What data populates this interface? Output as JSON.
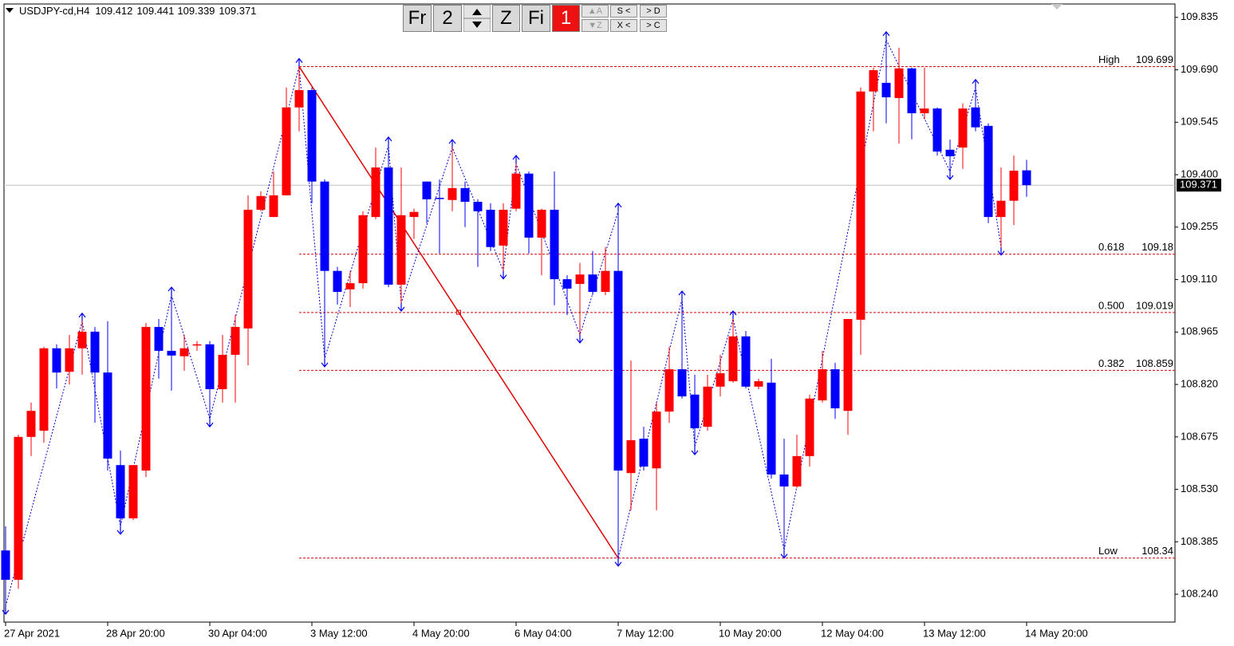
{
  "chart_data": {
    "type": "candlestick",
    "symbol": "USDJPY-cd,H4",
    "categories": [
      "27 Apr 2021",
      null,
      null,
      null,
      null,
      null,
      null,
      null,
      "28 Apr 20:00",
      null,
      null,
      null,
      null,
      null,
      null,
      null,
      "30 Apr 04:00",
      null,
      null,
      null,
      null,
      null,
      null,
      null,
      "3 May 12:00",
      null,
      null,
      null,
      null,
      null,
      null,
      null,
      "4 May 20:00",
      null,
      null,
      null,
      null,
      null,
      null,
      null,
      "6 May 04:00",
      null,
      null,
      null,
      null,
      null,
      null,
      null,
      "7 May 12:00",
      null,
      null,
      null,
      null,
      null,
      null,
      null,
      "10 May 20:00",
      null,
      null,
      null,
      null,
      null,
      null,
      null,
      "12 May 04:00",
      null,
      null,
      null,
      null,
      null,
      null,
      null,
      "13 May 12:00",
      null,
      null,
      null,
      null,
      null,
      null,
      null,
      "14 May 20:00"
    ],
    "open": [
      108.361,
      108.28,
      108.675,
      108.692,
      108.92,
      108.855,
      108.92,
      108.966,
      108.853,
      108.597,
      108.45,
      108.582,
      108.979,
      108.913,
      108.898,
      108.929,
      108.931,
      108.807,
      108.902,
      108.975,
      109.303,
      109.283,
      109.343,
      109.586,
      109.634,
      109.381,
      109.134,
      109.083,
      109.1,
      109.283,
      109.42,
      109.096,
      109.283,
      109.381,
      109.336,
      109.33,
      109.363,
      109.325,
      109.303,
      109.204,
      109.306,
      109.403,
      109.226,
      109.303,
      109.111,
      109.098,
      109.124,
      109.076,
      109.134,
      108.575,
      108.67,
      108.588,
      108.745,
      108.862,
      108.792,
      108.703,
      108.814,
      108.829,
      108.953,
      108.814,
      108.825,
      108.571,
      108.538,
      108.622,
      108.776,
      108.862,
      108.747,
      108.999,
      109.63,
      109.654,
      109.612,
      109.694,
      109.57,
      109.583,
      109.469,
      109.475,
      109.586,
      109.535,
      109.283,
      109.328,
      109.412
    ],
    "high": [
      108.428,
      108.681,
      108.77,
      108.924,
      108.931,
      108.957,
      108.995,
      108.979,
      108.995,
      108.637,
      108.597,
      108.99,
      109.001,
      109.067,
      108.957,
      108.94,
      108.94,
      108.957,
      109.012,
      109.343,
      109.354,
      109.409,
      109.641,
      109.699,
      109.641,
      109.387,
      109.145,
      109.134,
      109.299,
      109.475,
      109.482,
      109.42,
      109.306,
      109.381,
      109.387,
      109.475,
      109.381,
      109.332,
      109.321,
      109.321,
      109.431,
      109.409,
      109.306,
      109.409,
      109.122,
      109.156,
      109.189,
      109.2,
      109.299,
      108.886,
      108.703,
      108.77,
      108.924,
      109.056,
      108.847,
      108.847,
      108.902,
      109.001,
      108.968,
      108.836,
      108.891,
      108.67,
      108.681,
      108.792,
      108.913,
      108.88,
      109.001,
      109.641,
      109.696,
      109.773,
      109.751,
      109.696,
      109.696,
      109.586,
      109.497,
      109.597,
      109.641,
      109.542,
      109.42,
      109.453,
      109.441
    ],
    "low": [
      108.207,
      108.255,
      108.622,
      108.659,
      108.809,
      108.82,
      108.847,
      108.714,
      108.582,
      108.428,
      108.445,
      108.564,
      108.836,
      108.803,
      108.858,
      108.913,
      108.725,
      108.77,
      108.77,
      108.873,
      109.299,
      109.283,
      109.343,
      109.52,
      109.321,
      108.891,
      109.041,
      109.034,
      109.085,
      109.277,
      109.089,
      109.045,
      109.222,
      109.266,
      109.182,
      109.299,
      109.255,
      109.145,
      109.189,
      109.134,
      109.299,
      109.182,
      109.122,
      109.039,
      109.012,
      108.957,
      109.067,
      109.067,
      108.34,
      108.472,
      108.582,
      108.472,
      108.714,
      108.781,
      108.648,
      108.692,
      108.787,
      108.825,
      108.809,
      108.807,
      108.56,
      108.362,
      108.534,
      108.593,
      108.77,
      108.725,
      108.681,
      108.902,
      109.52,
      109.542,
      109.486,
      109.498,
      109.553,
      109.453,
      109.409,
      109.416,
      109.52,
      109.266,
      109.2,
      109.261,
      109.339
    ],
    "close": [
      108.28,
      108.675,
      108.747,
      108.92,
      108.853,
      108.92,
      108.966,
      108.853,
      108.615,
      108.45,
      108.597,
      108.979,
      108.913,
      108.9,
      108.92,
      108.931,
      108.807,
      108.902,
      108.979,
      109.303,
      109.341,
      109.343,
      109.586,
      109.634,
      109.381,
      109.134,
      109.076,
      109.1,
      109.288,
      109.42,
      109.096,
      109.288,
      109.297,
      109.332,
      109.334,
      109.363,
      109.325,
      109.299,
      109.2,
      109.303,
      109.403,
      109.226,
      109.303,
      109.111,
      109.085,
      109.124,
      109.076,
      109.134,
      108.582,
      108.666,
      108.593,
      108.745,
      108.862,
      108.787,
      108.699,
      108.814,
      108.851,
      108.953,
      108.814,
      108.829,
      108.571,
      108.538,
      108.622,
      108.781,
      108.862,
      108.754,
      109.001,
      109.63,
      109.689,
      109.614,
      109.694,
      109.57,
      109.583,
      109.464,
      109.451,
      109.583,
      109.531,
      109.283,
      109.328,
      109.411,
      109.371
    ],
    "up_color": "#ff0000",
    "down_color": "#0000ff",
    "ylim": [
      108.163,
      109.872
    ],
    "yticks": [
      109.835,
      {
        "value": 109.69,
        "label": "109.690"
      },
      109.545,
      {
        "value": 109.4,
        "label": "109.400"
      },
      109.255,
      {
        "value": 109.11,
        "label": "109.110"
      },
      108.965,
      {
        "value": 108.82,
        "label": "108.820"
      },
      108.675,
      {
        "value": 108.53,
        "label": "108.530"
      },
      108.385,
      {
        "value": 108.24,
        "label": "108.240"
      }
    ],
    "fib_levels": [
      {
        "label": "High",
        "value": 109.699
      },
      {
        "label": "0.618",
        "value": 109.18
      },
      {
        "label": "0.500",
        "value": 109.019
      },
      {
        "label": "0.382",
        "value": 108.859
      },
      {
        "label": "Low",
        "value": 108.34
      }
    ],
    "fib_color": "#e00000"
  },
  "toolbar": {
    "buttons": [
      "Fr",
      "2",
      "Z",
      "Fi",
      "1"
    ],
    "small": [
      "▲A",
      "▼Z",
      "S <",
      "> D",
      "X <",
      "> C"
    ]
  }
}
